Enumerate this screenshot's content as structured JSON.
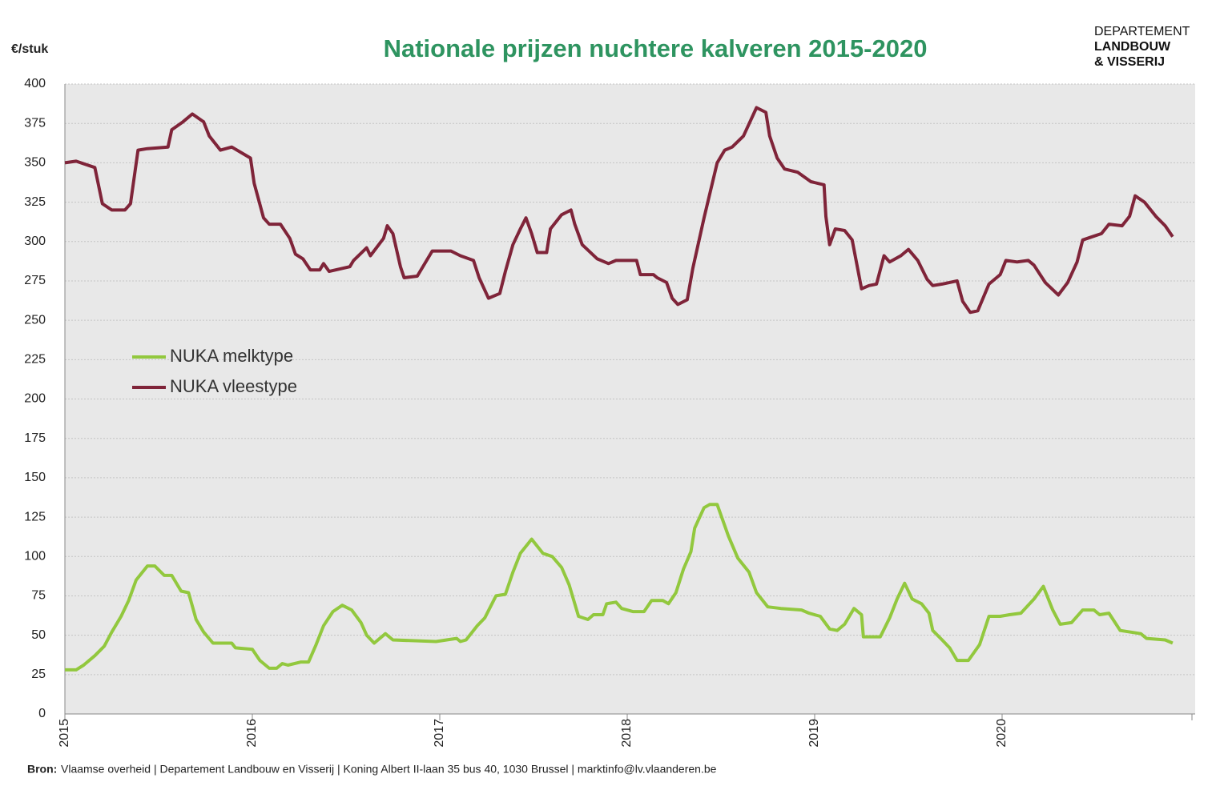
{
  "chart_data": {
    "type": "line",
    "title": "Nationale prijzen nuchtere kalveren 2015-2020",
    "y_label": "€/stuk",
    "logo": [
      "DEPARTEMENT",
      "LANDBOUW",
      "& VISSERIJ"
    ],
    "source_label": "Bron:",
    "source": "Vlaamse overheid | Departement Landbouw en Visserij | Koning Albert II-laan 35 bus 40, 1030 Brussel | marktinfo@lv.vlaanderen.be",
    "xlim": [
      2015,
      2021.03
    ],
    "xticks": [
      2015,
      2016,
      2017,
      2018,
      2019,
      2020
    ],
    "ylim": [
      0,
      400
    ],
    "yticks": [
      0,
      25,
      50,
      75,
      100,
      125,
      150,
      175,
      200,
      225,
      250,
      275,
      300,
      325,
      350,
      375,
      400
    ],
    "grid": true,
    "legend": "center-left",
    "series": [
      {
        "name": "NUKA melktype",
        "color": "#92c83e",
        "x": [
          2015.0,
          2015.06,
          2015.1,
          2015.16,
          2015.21,
          2015.25,
          2015.3,
          2015.34,
          2015.38,
          2015.44,
          2015.48,
          2015.53,
          2015.57,
          2015.62,
          2015.66,
          2015.7,
          2015.74,
          2015.79,
          2015.89,
          2015.91,
          2016.0,
          2016.04,
          2016.09,
          2016.13,
          2016.16,
          2016.19,
          2016.26,
          2016.3,
          2016.34,
          2016.38,
          2016.43,
          2016.48,
          2016.53,
          2016.58,
          2016.61,
          2016.65,
          2016.71,
          2016.75,
          2016.98,
          2017.09,
          2017.11,
          2017.14,
          2017.2,
          2017.24,
          2017.3,
          2017.35,
          2017.39,
          2017.43,
          2017.49,
          2017.55,
          2017.6,
          2017.65,
          2017.69,
          2017.74,
          2017.79,
          2017.82,
          2017.87,
          2017.89,
          2017.94,
          2017.97,
          2018.03,
          2018.09,
          2018.13,
          2018.19,
          2018.22,
          2018.26,
          2018.3,
          2018.34,
          2018.36,
          2018.41,
          2018.44,
          2018.48,
          2018.54,
          2018.59,
          2018.65,
          2018.69,
          2018.75,
          2018.82,
          2018.93,
          2018.97,
          2019.03,
          2019.08,
          2019.12,
          2019.16,
          2019.21,
          2019.25,
          2019.26,
          2019.35,
          2019.4,
          2019.44,
          2019.48,
          2019.52,
          2019.57,
          2019.61,
          2019.63,
          2019.68,
          2019.72,
          2019.76,
          2019.82,
          2019.88,
          2019.93,
          2019.99,
          2020.04,
          2020.1,
          2020.17,
          2020.22,
          2020.27,
          2020.31,
          2020.37,
          2020.43,
          2020.49,
          2020.52,
          2020.57,
          2020.63,
          2020.74,
          2020.77,
          2020.87,
          2020.91
        ],
        "values": [
          28,
          28,
          31,
          37,
          43,
          52,
          62,
          72,
          85,
          94,
          94,
          88,
          88,
          78,
          77,
          60,
          52,
          45,
          45,
          42,
          41,
          34,
          29,
          29,
          32,
          31,
          33,
          33,
          44,
          56,
          65,
          69,
          66,
          58,
          50,
          45,
          51,
          47,
          46,
          48,
          46,
          47,
          56,
          61,
          75,
          76,
          90,
          102,
          111,
          102,
          100,
          93,
          82,
          62,
          60,
          63,
          63,
          70,
          71,
          67,
          65,
          65,
          72,
          72,
          70,
          77,
          92,
          103,
          118,
          131,
          133,
          133,
          113,
          99,
          90,
          77,
          68,
          67,
          66,
          64,
          62,
          54,
          53,
          57,
          67,
          63,
          49,
          49,
          61,
          73,
          83,
          73,
          70,
          64,
          53,
          47,
          42,
          34,
          34,
          44,
          62,
          62,
          63,
          64,
          73,
          81,
          66,
          57,
          58,
          66,
          66,
          63,
          64,
          53,
          51,
          48,
          47,
          45
        ]
      },
      {
        "name": "NUKA vleestype",
        "color": "#7f2439",
        "x": [
          2015.0,
          2015.06,
          2015.16,
          2015.2,
          2015.25,
          2015.32,
          2015.35,
          2015.39,
          2015.44,
          2015.55,
          2015.57,
          2015.63,
          2015.68,
          2015.74,
          2015.77,
          2015.83,
          2015.89,
          2015.99,
          2016.01,
          2016.06,
          2016.09,
          2016.15,
          2016.2,
          2016.23,
          2016.27,
          2016.31,
          2016.36,
          2016.38,
          2016.41,
          2016.52,
          2016.54,
          2016.61,
          2016.63,
          2016.7,
          2016.72,
          2016.75,
          2016.79,
          2016.81,
          2016.88,
          2016.96,
          2017.06,
          2017.11,
          2017.18,
          2017.21,
          2017.26,
          2017.32,
          2017.35,
          2017.39,
          2017.43,
          2017.46,
          2017.49,
          2017.52,
          2017.57,
          2017.59,
          2017.65,
          2017.7,
          2017.72,
          2017.76,
          2017.84,
          2017.9,
          2017.94,
          2018.05,
          2018.07,
          2018.14,
          2018.16,
          2018.21,
          2018.24,
          2018.27,
          2018.32,
          2018.35,
          2018.41,
          2018.48,
          2018.52,
          2018.56,
          2018.62,
          2018.69,
          2018.74,
          2018.76,
          2018.8,
          2018.84,
          2018.91,
          2018.98,
          2019.05,
          2019.06,
          2019.08,
          2019.11,
          2019.16,
          2019.2,
          2019.25,
          2019.29,
          2019.33,
          2019.37,
          2019.4,
          2019.46,
          2019.5,
          2019.55,
          2019.6,
          2019.63,
          2019.68,
          2019.76,
          2019.79,
          2019.83,
          2019.87,
          2019.93,
          2019.99,
          2020.02,
          2020.08,
          2020.14,
          2020.17,
          2020.23,
          2020.3,
          2020.35,
          2020.4,
          2020.43,
          2020.48,
          2020.53,
          2020.57,
          2020.64,
          2020.68,
          2020.71,
          2020.76,
          2020.82,
          2020.87,
          2020.91
        ],
        "values": [
          350,
          351,
          347,
          324,
          320,
          320,
          324,
          358,
          359,
          360,
          371,
          376,
          381,
          376,
          367,
          358,
          360,
          353,
          337,
          315,
          311,
          311,
          302,
          292,
          289,
          282,
          282,
          286,
          281,
          284,
          288,
          296,
          291,
          302,
          310,
          305,
          284,
          277,
          278,
          294,
          294,
          291,
          288,
          277,
          264,
          267,
          281,
          298,
          308,
          315,
          305,
          293,
          293,
          308,
          317,
          320,
          311,
          298,
          289,
          286,
          288,
          288,
          279,
          279,
          277,
          274,
          264,
          260,
          263,
          283,
          315,
          350,
          358,
          360,
          367,
          385,
          382,
          367,
          353,
          346,
          344,
          338,
          336,
          316,
          298,
          308,
          307,
          301,
          270,
          272,
          273,
          291,
          287,
          291,
          295,
          288,
          276,
          272,
          273,
          275,
          262,
          255,
          256,
          273,
          279,
          288,
          287,
          288,
          285,
          274,
          266,
          274,
          287,
          301,
          303,
          305,
          311,
          310,
          316,
          329,
          325,
          316,
          310,
          303
        ]
      }
    ]
  }
}
